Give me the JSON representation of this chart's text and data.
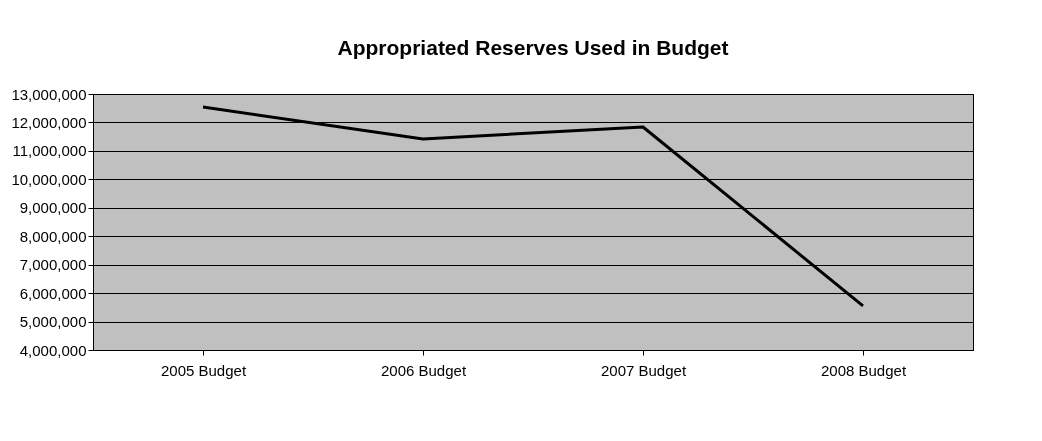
{
  "chart_data": {
    "type": "line",
    "title": "Appropriated Reserves Used in Budget",
    "categories": [
      "2005 Budget",
      "2006 Budget",
      "2007 Budget",
      "2008 Budget"
    ],
    "series": [
      {
        "color": "#000000",
        "values": [
          12540000,
          11420000,
          11840000,
          5550000
        ]
      }
    ],
    "ylim": [
      4000000,
      13000000
    ],
    "yticks": [
      {
        "value": 4000000,
        "label": "4,000,000"
      },
      {
        "value": 5000000,
        "label": "5,000,000"
      },
      {
        "value": 6000000,
        "label": "6,000,000"
      },
      {
        "value": 7000000,
        "label": "7,000,000"
      },
      {
        "value": 8000000,
        "label": "8,000,000"
      },
      {
        "value": 9000000,
        "label": "9,000,000"
      },
      {
        "value": 10000000,
        "label": "10,000,000"
      },
      {
        "value": 11000000,
        "label": "11,000,000"
      },
      {
        "value": 12000000,
        "label": "12,000,000"
      },
      {
        "value": 13000000,
        "label": "13,000,000"
      }
    ],
    "grid": "y",
    "marker": "none",
    "line_style": "solid"
  }
}
